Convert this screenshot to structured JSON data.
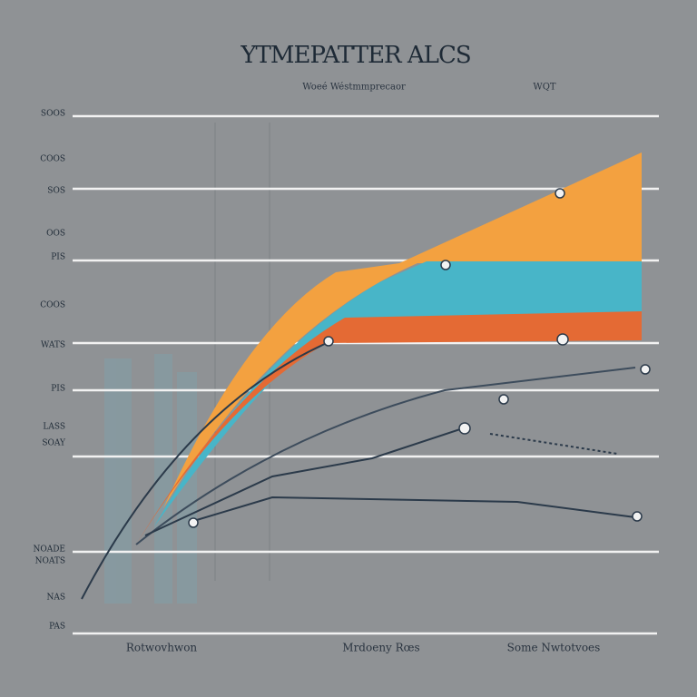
{
  "header": {
    "title": "YTMEPATTER ALCS",
    "subtitle": "Woeé Wéstmmprecaor",
    "tag": "WQT"
  },
  "left_labels": [
    "SOOS",
    "COOS",
    "SOS",
    "OOS",
    "PIS",
    "COOS",
    "WATS",
    "PIS",
    "LASS",
    "SOAY",
    "NOADE",
    "NOATS",
    "NAS",
    "PAS"
  ],
  "bottom_labels": [
    "Rotwovhwon",
    "Mrdoeny Rœs",
    "Some Nwtotvoes"
  ]
}
